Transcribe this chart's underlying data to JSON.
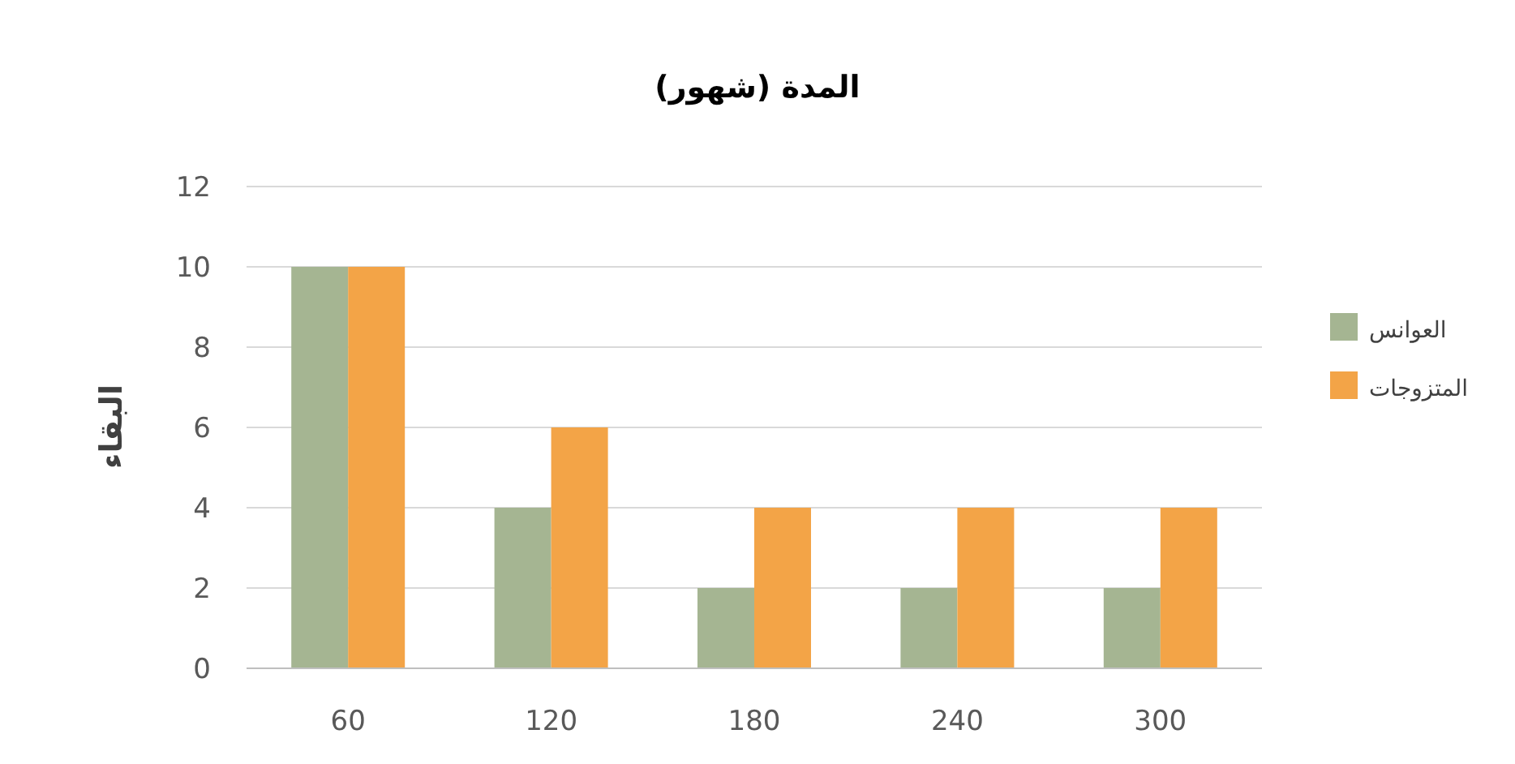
{
  "chart_data": {
    "type": "bar",
    "title": "المدة (شهور)",
    "ylabel": "البقاء",
    "categories": [
      "60",
      "120",
      "180",
      "240",
      "300"
    ],
    "series": [
      {
        "name": "العوانس",
        "color": "#a5b592",
        "values": [
          10,
          4,
          2,
          2,
          2
        ]
      },
      {
        "name": "المتزوجات",
        "color": "#f3a447",
        "values": [
          10,
          6,
          4,
          4,
          4
        ]
      }
    ],
    "ylim": [
      0,
      12
    ],
    "yticks": [
      0,
      2,
      4,
      6,
      8,
      10,
      12
    ],
    "grid": "y",
    "legend": "right"
  }
}
